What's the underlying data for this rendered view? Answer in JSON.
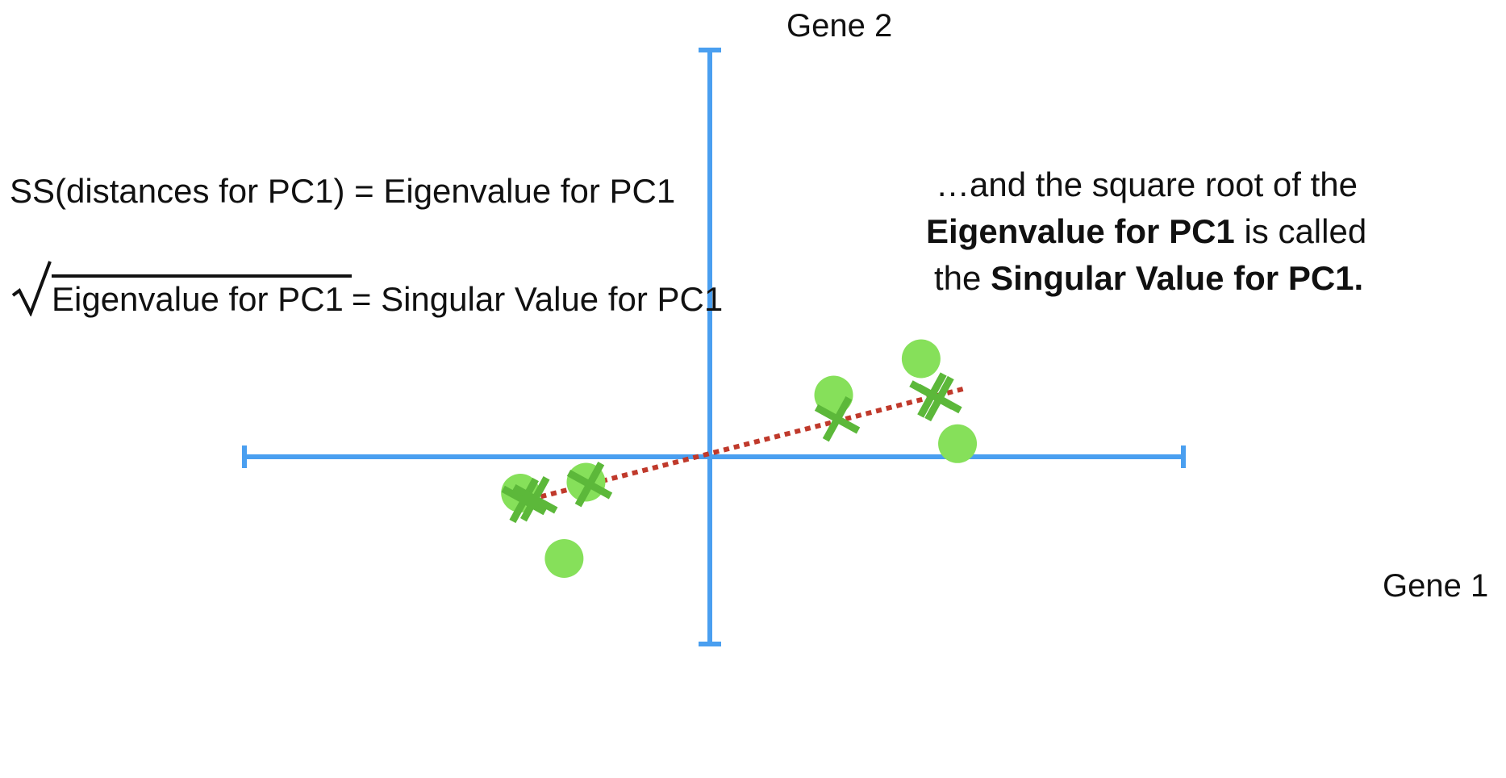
{
  "axes": {
    "x_label": "Gene 1",
    "y_label": "Gene 2",
    "axis_color": "#4a9ff0"
  },
  "formulas": {
    "ss_equation": "SS(distances for PC1) = Eigenvalue for PC1",
    "sqrt_radicand": "Eigenvalue for PC1",
    "sqrt_rhs": "= Singular Value for PC1"
  },
  "note": {
    "line1": "…and the square root of the",
    "line2_bold": "Eigenvalue for PC1",
    "line2_rest": " is called",
    "line3_start": "the ",
    "line3_bold": "Singular Value for PC1."
  },
  "colors": {
    "point": "#86e05a",
    "projection": "#5cb83a",
    "pc1_line": "#c0392b"
  },
  "chart_data": {
    "type": "scatter",
    "points": [
      {
        "x": -2.6,
        "y": -0.5
      },
      {
        "x": -1.7,
        "y": -0.35
      },
      {
        "x": -2.0,
        "y": -1.4
      },
      {
        "x": 1.7,
        "y": 0.85
      },
      {
        "x": 2.9,
        "y": 1.35
      },
      {
        "x": 3.4,
        "y": 0.18
      }
    ],
    "projections": [
      {
        "x": -2.55,
        "y": -0.6
      },
      {
        "x": -2.4,
        "y": -0.58
      },
      {
        "x": -1.65,
        "y": -0.38
      },
      {
        "x": 1.75,
        "y": 0.52
      },
      {
        "x": 3.05,
        "y": 0.85
      },
      {
        "x": 3.15,
        "y": 0.8
      }
    ],
    "pc1_line": {
      "from": {
        "x": -2.6,
        "y": -0.62
      },
      "to": {
        "x": 3.5,
        "y": 0.94
      }
    },
    "xlim": [
      -6.4,
      6.5
    ],
    "ylim": [
      -2.6,
      5.6
    ]
  }
}
